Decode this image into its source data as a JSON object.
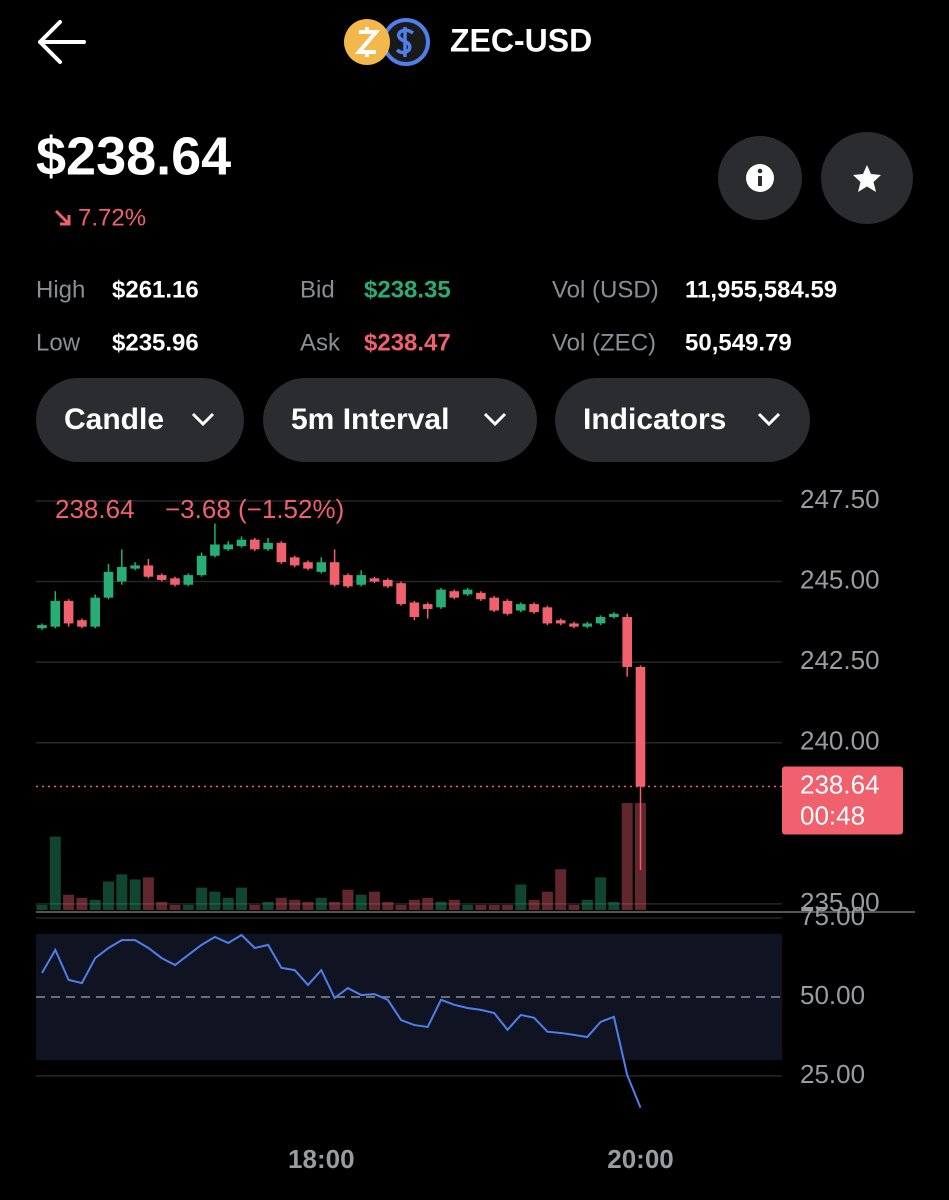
{
  "header": {
    "title": "ZEC-USD"
  },
  "price": "$238.64",
  "change": "7.72%",
  "stats": [
    {
      "label": "High",
      "value": "$261.16"
    },
    {
      "label": "Low",
      "value": "$235.96"
    },
    {
      "label": "Bid",
      "value": "$238.35"
    },
    {
      "label": "Ask",
      "value": "$238.47"
    },
    {
      "label": "Vol (USD)",
      "value": "11,955,584.59"
    },
    {
      "label": "Vol (ZEC)",
      "value": "50,549.79"
    }
  ],
  "controls": [
    "Candle",
    "5m Interval",
    "Indicators"
  ],
  "chart_data": [
    {
      "type": "candlestick",
      "categories": [
        null,
        null,
        null,
        null,
        null,
        null,
        null,
        null,
        null,
        null,
        null,
        null,
        null,
        null,
        null,
        null,
        null,
        null,
        null,
        null,
        null,
        "18:00",
        null,
        null,
        null,
        null,
        null,
        null,
        null,
        null,
        null,
        null,
        null,
        null,
        null,
        null,
        null,
        null,
        null,
        null,
        null,
        null,
        null,
        null,
        null,
        "20:00"
      ],
      "open": [
        243.55,
        243.6,
        244.4,
        243.8,
        243.6,
        244.5,
        245.0,
        245.4,
        245.5,
        245.2,
        245.1,
        244.9,
        245.2,
        245.8,
        246.0,
        246.1,
        246.3,
        246.0,
        246.2,
        245.75,
        245.6,
        245.3,
        245.6,
        245.2,
        244.9,
        245.1,
        245.05,
        244.95,
        244.35,
        244.3,
        244.2,
        244.7,
        244.6,
        244.65,
        244.5,
        244.4,
        244.1,
        244.3,
        244.2,
        243.8,
        243.7,
        243.6,
        243.7,
        243.9,
        243.9,
        242.35
      ],
      "high": [
        243.7,
        244.7,
        244.45,
        243.85,
        244.6,
        245.55,
        246.0,
        245.6,
        245.7,
        245.25,
        245.15,
        245.25,
        245.9,
        246.8,
        246.25,
        246.4,
        246.35,
        246.35,
        246.25,
        245.8,
        245.65,
        245.75,
        246.0,
        245.25,
        245.35,
        245.15,
        245.1,
        245.0,
        244.4,
        244.35,
        244.8,
        244.75,
        244.8,
        244.7,
        244.55,
        244.45,
        244.35,
        244.35,
        244.25,
        243.85,
        243.75,
        243.75,
        243.95,
        244.05,
        244.0,
        242.4
      ],
      "low": [
        243.5,
        243.55,
        243.6,
        243.55,
        243.55,
        244.45,
        244.9,
        245.35,
        245.1,
        245.0,
        244.85,
        244.85,
        245.15,
        245.75,
        245.95,
        246.05,
        245.95,
        245.95,
        245.55,
        245.45,
        245.35,
        245.25,
        244.85,
        244.8,
        244.85,
        244.95,
        244.8,
        244.25,
        243.8,
        243.85,
        244.15,
        244.45,
        244.55,
        244.4,
        244.05,
        243.95,
        244.05,
        244.0,
        243.65,
        243.65,
        243.55,
        243.55,
        243.65,
        243.85,
        242.05,
        236.05
      ],
      "close": [
        243.65,
        244.4,
        243.7,
        243.6,
        244.5,
        245.3,
        245.45,
        245.5,
        245.15,
        245.05,
        244.9,
        245.2,
        245.8,
        246.15,
        246.15,
        246.3,
        246.0,
        246.2,
        245.6,
        245.5,
        245.4,
        245.6,
        244.9,
        244.85,
        245.2,
        245.0,
        244.85,
        244.3,
        243.9,
        244.15,
        244.75,
        244.5,
        244.75,
        244.45,
        244.1,
        244.0,
        244.3,
        244.05,
        243.7,
        243.7,
        243.6,
        243.7,
        243.9,
        244.0,
        242.35,
        238.64
      ],
      "volume": [
        5,
        72,
        15,
        12,
        10,
        28,
        35,
        30,
        32,
        8,
        5,
        5,
        22,
        18,
        12,
        22,
        5,
        8,
        12,
        10,
        8,
        12,
        8,
        20,
        15,
        18,
        8,
        5,
        10,
        12,
        8,
        10,
        5,
        5,
        5,
        5,
        25,
        10,
        18,
        40,
        5,
        10,
        32,
        8,
        105,
        105
      ],
      "up_color": "#27ad75",
      "down_color": "#f0616d",
      "ylim": [
        234.81,
        248.15
      ],
      "yticks": [
        {
          "value": 235,
          "label": "235.00"
        },
        {
          "value": 240,
          "label": "240.00"
        },
        {
          "value": 242.5,
          "label": "242.50"
        },
        {
          "value": 245,
          "label": "245.00"
        },
        {
          "value": 247.5,
          "label": "247.50"
        }
      ],
      "last_label": "238.64",
      "change_label": "−3.68 (−1.52%)",
      "price_tag": {
        "value": 238.64,
        "label": "238.64"
      },
      "countdown": "00:48"
    },
    {
      "type": "line",
      "values": [
        57.6,
        64.9,
        55.4,
        54.4,
        62.3,
        65.5,
        68,
        68,
        65.5,
        62.3,
        60.1,
        63.3,
        66.5,
        69,
        67.1,
        69.6,
        65.5,
        66.5,
        59.2,
        58.5,
        53.8,
        58.5,
        49.7,
        52.8,
        50.6,
        50.9,
        49.1,
        42.7,
        41.1,
        40.5,
        49.1,
        47.5,
        46.5,
        45.9,
        44.9,
        39.6,
        44.3,
        43.4,
        39,
        38.6,
        38,
        37.3,
        42.1,
        43.7,
        25.3,
        14.9
      ],
      "color": "#4f7fea",
      "ylim": [
        14.2,
        75
      ],
      "yticks": [
        {
          "value": 25,
          "label": "25.00"
        },
        {
          "value": 50,
          "label": "50.00"
        },
        {
          "value": 75,
          "label": "75.00"
        }
      ],
      "band": [
        30,
        70
      ],
      "midline": 50
    }
  ]
}
